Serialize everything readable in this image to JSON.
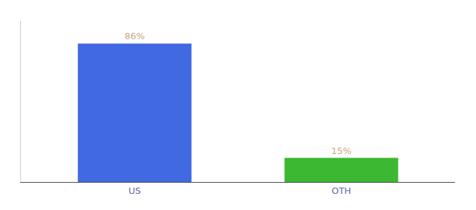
{
  "chart_data": {
    "type": "bar",
    "categories": [
      "US",
      "OTH"
    ],
    "values": [
      86,
      15
    ],
    "value_labels": [
      "86%",
      "15%"
    ],
    "colors": [
      "#4169e1",
      "#3cb832"
    ],
    "data_labels": true,
    "ylim": [
      0,
      100
    ],
    "grid": false,
    "tick_labels": "x"
  }
}
